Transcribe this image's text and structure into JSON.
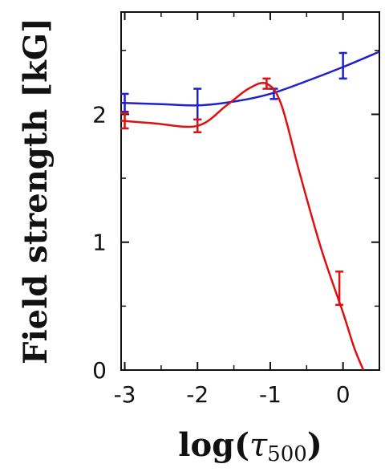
{
  "chart_data": {
    "type": "line",
    "title": "",
    "xlabel": "log(τ500)",
    "ylabel": "Field strength [kG]",
    "xlim": [
      -3.05,
      0.5
    ],
    "ylim": [
      0,
      2.8
    ],
    "x_ticks": [
      -3,
      -2,
      -1,
      0
    ],
    "x_tick_labels": [
      "-3",
      "-2",
      "-1",
      "0"
    ],
    "y_ticks": [
      0,
      1,
      2
    ],
    "y_tick_labels": [
      "0",
      "1",
      "2"
    ],
    "grid": false,
    "legend": "none",
    "series": [
      {
        "color": "#2020cc",
        "curve": [
          [
            -3.05,
            2.09
          ],
          [
            -2.5,
            2.08
          ],
          [
            -2.0,
            2.07
          ],
          [
            -1.5,
            2.1
          ],
          [
            -1.0,
            2.16
          ],
          [
            -0.5,
            2.26
          ],
          [
            0.0,
            2.37
          ],
          [
            0.5,
            2.49
          ]
        ],
        "points": [
          {
            "x": -3.0,
            "y": 2.09,
            "err": 0.07
          },
          {
            "x": -2.0,
            "y": 2.08,
            "err": 0.12
          },
          {
            "x": -0.95,
            "y": 2.16,
            "err": 0.04
          },
          {
            "x": 0.0,
            "y": 2.38,
            "err": 0.1
          }
        ]
      },
      {
        "color": "#dd1111",
        "curve": [
          [
            -3.05,
            1.95
          ],
          [
            -2.6,
            1.93
          ],
          [
            -2.0,
            1.91
          ],
          [
            -1.6,
            2.07
          ],
          [
            -1.3,
            2.2
          ],
          [
            -1.05,
            2.24
          ],
          [
            -0.85,
            2.08
          ],
          [
            -0.6,
            1.55
          ],
          [
            -0.3,
            0.95
          ],
          [
            0.0,
            0.45
          ],
          [
            0.15,
            0.18
          ],
          [
            0.28,
            0.0
          ]
        ],
        "points": [
          {
            "x": -3.0,
            "y": 1.95,
            "err": 0.06
          },
          {
            "x": -2.0,
            "y": 1.91,
            "err": 0.05
          },
          {
            "x": -1.05,
            "y": 2.24,
            "err": 0.04
          },
          {
            "x": -0.05,
            "y": 0.64,
            "err": 0.13
          }
        ]
      }
    ]
  }
}
